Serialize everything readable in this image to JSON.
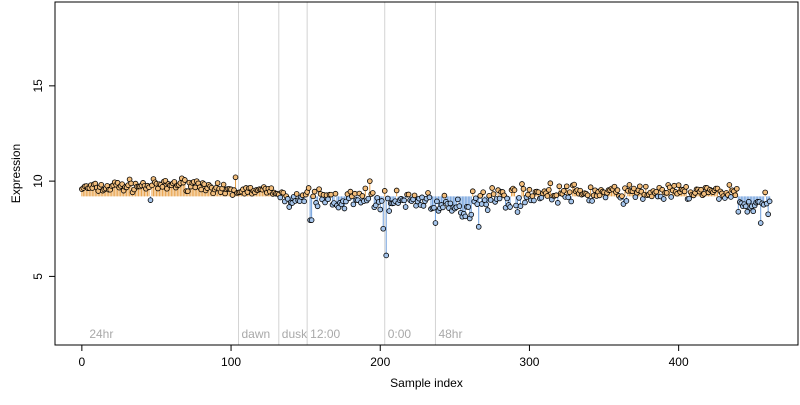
{
  "chart_data": {
    "type": "scatter",
    "title": "",
    "xlabel": "Sample index",
    "ylabel": "Expression",
    "xlim": [
      -18,
      480
    ],
    "ylim": [
      1.4,
      19.4
    ],
    "xticks": [
      0,
      100,
      200,
      300,
      400
    ],
    "yticks": [
      5,
      10,
      15
    ],
    "grid": false,
    "legend": "none",
    "baseline": 9.2,
    "n_points": 462,
    "point_colors": {
      "high": "#f3be7c",
      "low": "#a5c5ec",
      "outline": "#000000"
    },
    "stem_colors": {
      "high": "#e8a24a",
      "low": "#6f9fdc"
    },
    "vline_color": "#d3d3d3",
    "annotation_color": "#a9a9a9",
    "annotations": [
      {
        "x": 3,
        "label": "24hr"
      },
      {
        "x": 105,
        "label": "dawn"
      },
      {
        "x": 132,
        "label": "dusk"
      },
      {
        "x": 151,
        "label": "12:00"
      },
      {
        "x": 203,
        "label": "0:00"
      },
      {
        "x": 237,
        "label": "48hr"
      }
    ],
    "vlines": [
      105,
      132,
      151,
      203,
      237
    ],
    "segments": [
      {
        "x0": 0,
        "x1": 20,
        "mean": 9.65,
        "amp": 0.18
      },
      {
        "x0": 20,
        "x1": 60,
        "mean": 9.75,
        "amp": 0.22
      },
      {
        "x0": 60,
        "x1": 85,
        "mean": 9.85,
        "amp": 0.22
      },
      {
        "x0": 85,
        "x1": 105,
        "mean": 9.45,
        "amp": 0.28
      },
      {
        "x0": 105,
        "x1": 132,
        "mean": 9.5,
        "amp": 0.16
      },
      {
        "x0": 132,
        "x1": 151,
        "mean": 9.1,
        "amp": 0.28
      },
      {
        "x0": 151,
        "x1": 175,
        "mean": 9.1,
        "amp": 0.45
      },
      {
        "x0": 175,
        "x1": 203,
        "mean": 9.0,
        "amp": 0.45
      },
      {
        "x0": 203,
        "x1": 237,
        "mean": 9.0,
        "amp": 0.38
      },
      {
        "x0": 237,
        "x1": 262,
        "mean": 8.55,
        "amp": 0.45
      },
      {
        "x0": 262,
        "x1": 300,
        "mean": 9.15,
        "amp": 0.45
      },
      {
        "x0": 300,
        "x1": 370,
        "mean": 9.35,
        "amp": 0.35
      },
      {
        "x0": 370,
        "x1": 440,
        "mean": 9.4,
        "amp": 0.32
      },
      {
        "x0": 440,
        "x1": 462,
        "mean": 8.75,
        "amp": 0.42
      }
    ],
    "notable_points": [
      {
        "x": 46,
        "y": 9.0
      },
      {
        "x": 103,
        "y": 10.2
      },
      {
        "x": 153,
        "y": 7.95
      },
      {
        "x": 154,
        "y": 7.95
      },
      {
        "x": 193,
        "y": 10.0
      },
      {
        "x": 202,
        "y": 7.5
      },
      {
        "x": 204,
        "y": 6.1
      },
      {
        "x": 237,
        "y": 7.8
      },
      {
        "x": 266,
        "y": 7.6
      },
      {
        "x": 455,
        "y": 7.8
      }
    ]
  }
}
